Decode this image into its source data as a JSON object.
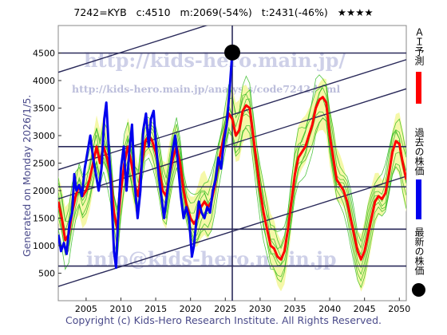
{
  "header": {
    "code": "7242=KYB",
    "c": "c:4510",
    "m": "m:2069(-54%)",
    "t": "t:2431(-46%)",
    "stars": "★★★★"
  },
  "side_label": "Generated on Monday 2026/1/5.",
  "footer": "Copyright (c) Kids-Hero Research Institute. All Rights Reserved.",
  "watermarks": {
    "url": "http://kids-hero.main.jp/",
    "analysis": "http://kids-hero.main.jp/analysis/code7242.html",
    "email": "info@kids-hero.main.jp"
  },
  "legend": {
    "ai": "ＡＩ予測",
    "past": "過去の株価",
    "latest": "最新の株価"
  },
  "colors": {
    "ai": "#ff0000",
    "past": "#0000ee",
    "latest": "#000000",
    "envelope": "#33bb22",
    "band_fill": "#f5f8a8",
    "grid": "#2a2a5a"
  },
  "chart_data": {
    "type": "line",
    "xlim": [
      2001,
      2051
    ],
    "ylim": [
      0,
      5000
    ],
    "x_ticks": [
      "2005",
      "2010",
      "2015",
      "2020",
      "2025",
      "2030",
      "2035",
      "2040",
      "2045",
      "2050"
    ],
    "y_ticks": [
      "500",
      "1000",
      "1500",
      "2000",
      "2500",
      "3000",
      "3500",
      "4000",
      "4500"
    ],
    "hlines": [
      4500,
      2800,
      2069,
      1300,
      630
    ],
    "marker": {
      "x": 2026.0,
      "y": 4510
    },
    "trend_lines": [
      {
        "x": [
          2001,
          2051
        ],
        "y": [
          4150,
          6150
        ]
      },
      {
        "x": [
          2001,
          2051
        ],
        "y": [
          2380,
          4380
        ]
      },
      {
        "x": [
          2001,
          2051
        ],
        "y": [
          1850,
          3850
        ]
      },
      {
        "x": [
          2001,
          2051
        ],
        "y": [
          260,
          2260
        ]
      }
    ],
    "series": [
      {
        "key": "past",
        "points": [
          [
            2001.0,
            1200
          ],
          [
            2001.4,
            900
          ],
          [
            2001.8,
            1050
          ],
          [
            2002.2,
            850
          ],
          [
            2002.6,
            1400
          ],
          [
            2003.0,
            1600
          ],
          [
            2003.3,
            2300
          ],
          [
            2003.6,
            2000
          ],
          [
            2004.0,
            2100
          ],
          [
            2004.4,
            1900
          ],
          [
            2004.8,
            2400
          ],
          [
            2005.2,
            2700
          ],
          [
            2005.6,
            3000
          ],
          [
            2006.0,
            2600
          ],
          [
            2006.4,
            2300
          ],
          [
            2006.8,
            2000
          ],
          [
            2007.2,
            2400
          ],
          [
            2007.6,
            3300
          ],
          [
            2007.9,
            3600
          ],
          [
            2008.2,
            2900
          ],
          [
            2008.6,
            2000
          ],
          [
            2009.0,
            900
          ],
          [
            2009.3,
            600
          ],
          [
            2009.6,
            1500
          ],
          [
            2010.0,
            2400
          ],
          [
            2010.4,
            2800
          ],
          [
            2010.8,
            2000
          ],
          [
            2011.2,
            2700
          ],
          [
            2011.6,
            3200
          ],
          [
            2012.0,
            2100
          ],
          [
            2012.4,
            1500
          ],
          [
            2012.8,
            2000
          ],
          [
            2013.2,
            3100
          ],
          [
            2013.6,
            3400
          ],
          [
            2014.0,
            2800
          ],
          [
            2014.3,
            3300
          ],
          [
            2014.7,
            3450
          ],
          [
            2015.0,
            2900
          ],
          [
            2015.4,
            2300
          ],
          [
            2015.8,
            1900
          ],
          [
            2016.2,
            1500
          ],
          [
            2016.6,
            1900
          ],
          [
            2017.0,
            2300
          ],
          [
            2017.4,
            2700
          ],
          [
            2017.8,
            3000
          ],
          [
            2018.2,
            2500
          ],
          [
            2018.6,
            1900
          ],
          [
            2019.0,
            1500
          ],
          [
            2019.4,
            1700
          ],
          [
            2019.8,
            1500
          ],
          [
            2020.2,
            800
          ],
          [
            2020.5,
            1000
          ],
          [
            2020.8,
            1400
          ],
          [
            2021.2,
            1800
          ],
          [
            2021.6,
            1600
          ],
          [
            2022.0,
            1500
          ],
          [
            2022.4,
            1700
          ],
          [
            2022.8,
            1600
          ],
          [
            2023.2,
            2000
          ],
          [
            2023.6,
            2200
          ],
          [
            2024.0,
            2600
          ],
          [
            2024.4,
            2400
          ],
          [
            2024.8,
            2900
          ],
          [
            2025.2,
            3200
          ],
          [
            2025.6,
            3800
          ],
          [
            2026.0,
            4510
          ]
        ]
      },
      {
        "key": "ai",
        "points": [
          [
            2001.0,
            1800
          ],
          [
            2001.5,
            1500
          ],
          [
            2002.0,
            1100
          ],
          [
            2002.5,
            1200
          ],
          [
            2003.0,
            1600
          ],
          [
            2003.5,
            1900
          ],
          [
            2004.0,
            2100
          ],
          [
            2004.5,
            1900
          ],
          [
            2005.0,
            2000
          ],
          [
            2005.5,
            2200
          ],
          [
            2006.0,
            2500
          ],
          [
            2006.5,
            2800
          ],
          [
            2007.0,
            2500
          ],
          [
            2007.5,
            2800
          ],
          [
            2008.0,
            2600
          ],
          [
            2008.5,
            2300
          ],
          [
            2009.0,
            1600
          ],
          [
            2009.5,
            1300
          ],
          [
            2010.0,
            2000
          ],
          [
            2010.5,
            2500
          ],
          [
            2011.0,
            2800
          ],
          [
            2011.5,
            2500
          ],
          [
            2012.0,
            2100
          ],
          [
            2012.5,
            1900
          ],
          [
            2013.0,
            2500
          ],
          [
            2013.5,
            2900
          ],
          [
            2014.0,
            3000
          ],
          [
            2014.5,
            2900
          ],
          [
            2015.0,
            2700
          ],
          [
            2015.5,
            2400
          ],
          [
            2016.0,
            2000
          ],
          [
            2016.5,
            1900
          ],
          [
            2017.0,
            2300
          ],
          [
            2017.5,
            2600
          ],
          [
            2018.0,
            2800
          ],
          [
            2018.5,
            2500
          ],
          [
            2019.0,
            2000
          ],
          [
            2019.5,
            1700
          ],
          [
            2020.0,
            1500
          ],
          [
            2020.5,
            1400
          ],
          [
            2021.0,
            1500
          ],
          [
            2021.5,
            1700
          ],
          [
            2022.0,
            1800
          ],
          [
            2022.5,
            1700
          ],
          [
            2023.0,
            1800
          ],
          [
            2023.5,
            2100
          ],
          [
            2024.0,
            2500
          ],
          [
            2024.5,
            2800
          ],
          [
            2025.0,
            3100
          ],
          [
            2025.5,
            3400
          ],
          [
            2026.0,
            3300
          ],
          [
            2026.5,
            3000
          ],
          [
            2027.0,
            3100
          ],
          [
            2027.5,
            3450
          ],
          [
            2028.0,
            3550
          ],
          [
            2028.5,
            3500
          ],
          [
            2029.0,
            3000
          ],
          [
            2029.5,
            2500
          ],
          [
            2030.0,
            2000
          ],
          [
            2030.5,
            1600
          ],
          [
            2031.0,
            1300
          ],
          [
            2031.5,
            1000
          ],
          [
            2032.0,
            950
          ],
          [
            2032.5,
            800
          ],
          [
            2033.0,
            750
          ],
          [
            2033.5,
            900
          ],
          [
            2034.0,
            1300
          ],
          [
            2034.5,
            1800
          ],
          [
            2035.0,
            2300
          ],
          [
            2035.5,
            2600
          ],
          [
            2036.0,
            2700
          ],
          [
            2036.5,
            2800
          ],
          [
            2037.0,
            3000
          ],
          [
            2037.5,
            3200
          ],
          [
            2038.0,
            3500
          ],
          [
            2038.5,
            3650
          ],
          [
            2039.0,
            3700
          ],
          [
            2039.5,
            3600
          ],
          [
            2040.0,
            3000
          ],
          [
            2040.5,
            2600
          ],
          [
            2041.0,
            2200
          ],
          [
            2041.5,
            2100
          ],
          [
            2042.0,
            2000
          ],
          [
            2042.5,
            1800
          ],
          [
            2043.0,
            1500
          ],
          [
            2043.5,
            1200
          ],
          [
            2044.0,
            900
          ],
          [
            2044.5,
            750
          ],
          [
            2045.0,
            900
          ],
          [
            2045.5,
            1200
          ],
          [
            2046.0,
            1500
          ],
          [
            2046.5,
            1800
          ],
          [
            2047.0,
            1900
          ],
          [
            2047.5,
            1850
          ],
          [
            2048.0,
            1950
          ],
          [
            2048.5,
            2300
          ],
          [
            2049.0,
            2700
          ],
          [
            2049.5,
            2900
          ],
          [
            2050.0,
            2850
          ],
          [
            2050.5,
            2500
          ],
          [
            2051.0,
            2200
          ]
        ]
      }
    ]
  }
}
